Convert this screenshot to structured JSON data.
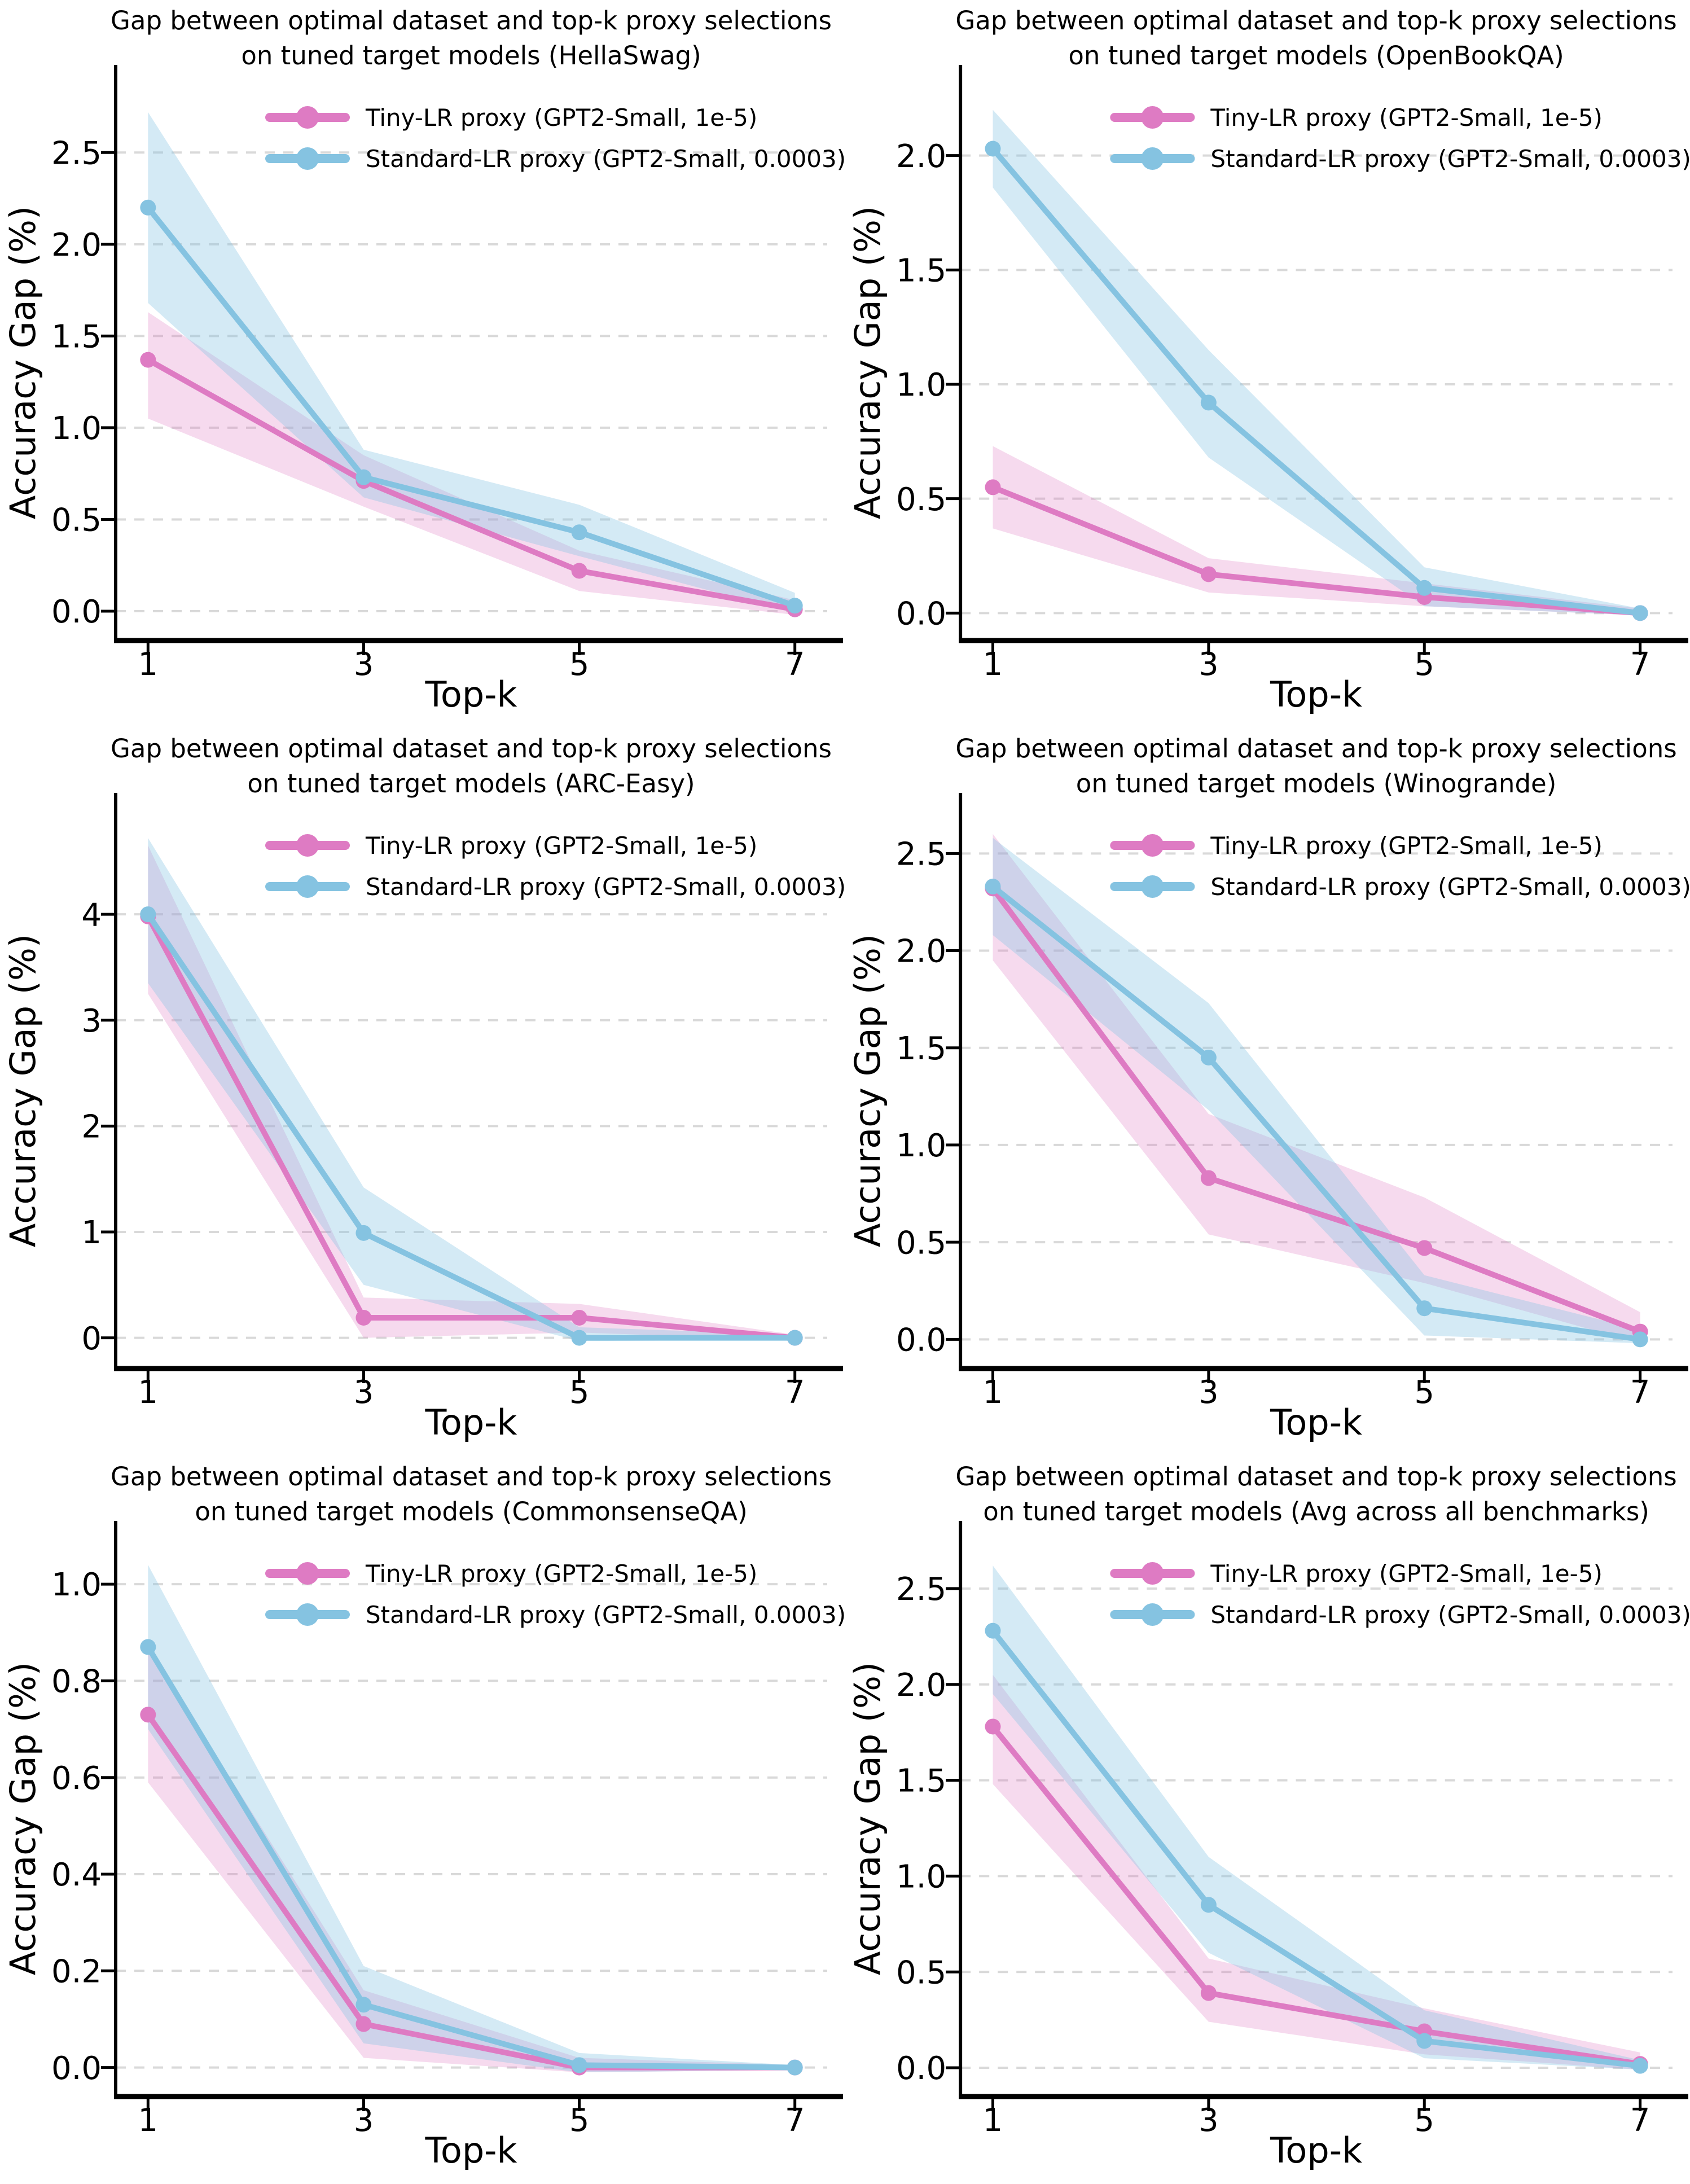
{
  "figure": {
    "rows": 3,
    "cols": 2,
    "background": "#ffffff",
    "description": "2x3 grid of line charts comparing proxy selection accuracy gaps"
  },
  "colors": {
    "tiny_line": "#de7bc3",
    "standard_line": "#85c3e1",
    "tiny_band_opacity": 0.28,
    "standard_band_opacity": 0.35,
    "grid": "#d9d9d9",
    "axis": "#000000",
    "text": "#000000"
  },
  "shared": {
    "xlabel": "Top-k",
    "ylabel": "Accuracy Gap (%)",
    "x_tick_labels": [
      "1",
      "3",
      "5",
      "7"
    ],
    "legend": [
      "Tiny-LR proxy (GPT2-Small, 1e-5)",
      "Standard-LR proxy (GPT2-Small, 0.0003)"
    ]
  },
  "chart_data": [
    {
      "type": "line",
      "title_line1": "Gap between optimal dataset and top-k proxy selections",
      "title_line2": "on tuned target models (HellaSwag)",
      "benchmark": "HellaSwag",
      "xlabel": "Top-k",
      "ylabel": "Accuracy Gap (%)",
      "x": [
        1,
        3,
        5,
        7
      ],
      "x_tick_labels": [
        "1",
        "3",
        "5",
        "7"
      ],
      "xlim": [
        0.7,
        7.3
      ],
      "ylim": [
        -0.16,
        2.87
      ],
      "y_ticks": [
        0.0,
        0.5,
        1.0,
        1.5,
        2.0,
        2.5
      ],
      "y_tick_labels": [
        "0.0",
        "0.5",
        "1.0",
        "1.5",
        "2.0",
        "2.5"
      ],
      "grid": "dashed horizontal",
      "legend_position": "upper center, no frame",
      "series": [
        {
          "name": "Tiny-LR proxy (GPT2-Small, 1e-5)",
          "color_key": "tiny",
          "values": [
            1.37,
            0.71,
            0.22,
            0.01
          ],
          "band_lower": [
            1.05,
            0.57,
            0.11,
            -0.02
          ],
          "band_upper": [
            1.63,
            0.85,
            0.33,
            0.06
          ]
        },
        {
          "name": "Standard-LR proxy (GPT2-Small, 0.0003)",
          "color_key": "standard",
          "values": [
            2.2,
            0.73,
            0.43,
            0.03
          ],
          "band_lower": [
            1.68,
            0.62,
            0.3,
            -0.01
          ],
          "band_upper": [
            2.72,
            0.88,
            0.58,
            0.1
          ]
        }
      ]
    },
    {
      "type": "line",
      "title_line1": "Gap between optimal dataset and top-k proxy selections",
      "title_line2": "on tuned target models (OpenBookQA)",
      "benchmark": "OpenBookQA",
      "xlabel": "Top-k",
      "ylabel": "Accuracy Gap (%)",
      "x": [
        1,
        3,
        5,
        7
      ],
      "x_tick_labels": [
        "1",
        "3",
        "5",
        "7"
      ],
      "xlim": [
        0.7,
        7.3
      ],
      "ylim": [
        -0.12,
        2.31
      ],
      "y_ticks": [
        0.0,
        0.5,
        1.0,
        1.5,
        2.0
      ],
      "y_tick_labels": [
        "0.0",
        "0.5",
        "1.0",
        "1.5",
        "2.0"
      ],
      "grid": "dashed horizontal",
      "legend_position": "upper center, no frame",
      "series": [
        {
          "name": "Tiny-LR proxy (GPT2-Small, 1e-5)",
          "color_key": "tiny",
          "values": [
            0.55,
            0.17,
            0.07,
            0.0
          ],
          "band_lower": [
            0.37,
            0.09,
            0.03,
            -0.01
          ],
          "band_upper": [
            0.73,
            0.24,
            0.13,
            0.02
          ]
        },
        {
          "name": "Standard-LR proxy (GPT2-Small, 0.0003)",
          "color_key": "standard",
          "values": [
            2.03,
            0.92,
            0.11,
            0.0
          ],
          "band_lower": [
            1.86,
            0.68,
            0.03,
            -0.01
          ],
          "band_upper": [
            2.2,
            1.15,
            0.2,
            0.02
          ]
        }
      ]
    },
    {
      "type": "line",
      "title_line1": "Gap between optimal dataset and top-k proxy selections",
      "title_line2": "on tuned target models (ARC-Easy)",
      "benchmark": "ARC-Easy",
      "xlabel": "Top-k",
      "ylabel": "Accuracy Gap (%)",
      "x": [
        1,
        3,
        5,
        7
      ],
      "x_tick_labels": [
        "1",
        "3",
        "5",
        "7"
      ],
      "xlim": [
        0.7,
        7.3
      ],
      "ylim": [
        -0.29,
        4.96
      ],
      "y_ticks": [
        0,
        1,
        2,
        3,
        4
      ],
      "y_tick_labels": [
        "0",
        "1",
        "2",
        "3",
        "4"
      ],
      "grid": "dashed horizontal",
      "legend_position": "upper center, no frame",
      "series": [
        {
          "name": "Tiny-LR proxy (GPT2-Small, 1e-5)",
          "color_key": "tiny",
          "values": [
            3.98,
            0.19,
            0.19,
            0.0
          ],
          "band_lower": [
            3.25,
            0.0,
            0.05,
            -0.02
          ],
          "band_upper": [
            4.65,
            0.38,
            0.32,
            0.03
          ]
        },
        {
          "name": "Standard-LR proxy (GPT2-Small, 0.0003)",
          "color_key": "standard",
          "values": [
            4.0,
            0.99,
            0.0,
            0.0
          ],
          "band_lower": [
            3.35,
            0.5,
            -0.03,
            -0.02
          ],
          "band_upper": [
            4.72,
            1.42,
            0.1,
            0.03
          ]
        }
      ]
    },
    {
      "type": "line",
      "title_line1": "Gap between optimal dataset and top-k proxy selections",
      "title_line2": "on tuned target models (Winogrande)",
      "benchmark": "Winogrande",
      "xlabel": "Top-k",
      "ylabel": "Accuracy Gap (%)",
      "x": [
        1,
        3,
        5,
        7
      ],
      "x_tick_labels": [
        "1",
        "3",
        "5",
        "7"
      ],
      "xlim": [
        0.7,
        7.3
      ],
      "ylim": [
        -0.15,
        2.71
      ],
      "y_ticks": [
        0.0,
        0.5,
        1.0,
        1.5,
        2.0,
        2.5
      ],
      "y_tick_labels": [
        "0.0",
        "0.5",
        "1.0",
        "1.5",
        "2.0",
        "2.5"
      ],
      "grid": "dashed horizontal",
      "legend_position": "upper center, no frame",
      "series": [
        {
          "name": "Tiny-LR proxy (GPT2-Small, 1e-5)",
          "color_key": "tiny",
          "values": [
            2.32,
            0.83,
            0.47,
            0.04
          ],
          "band_lower": [
            1.95,
            0.54,
            0.29,
            -0.02
          ],
          "band_upper": [
            2.6,
            1.16,
            0.73,
            0.14
          ]
        },
        {
          "name": "Standard-LR proxy (GPT2-Small, 0.0003)",
          "color_key": "standard",
          "values": [
            2.33,
            1.45,
            0.16,
            0.0
          ],
          "band_lower": [
            2.08,
            1.18,
            0.02,
            -0.02
          ],
          "band_upper": [
            2.58,
            1.73,
            0.33,
            0.05
          ]
        }
      ]
    },
    {
      "type": "line",
      "title_line1": "Gap between optimal dataset and top-k proxy selections",
      "title_line2": "on tuned target models (CommonsenseQA)",
      "benchmark": "CommonsenseQA",
      "xlabel": "Top-k",
      "ylabel": "Accuracy Gap (%)",
      "x": [
        1,
        3,
        5,
        7
      ],
      "x_tick_labels": [
        "1",
        "3",
        "5",
        "7"
      ],
      "xlim": [
        0.7,
        7.3
      ],
      "ylim": [
        -0.06,
        1.09
      ],
      "y_ticks": [
        0.0,
        0.2,
        0.4,
        0.6,
        0.8,
        1.0
      ],
      "y_tick_labels": [
        "0.0",
        "0.2",
        "0.4",
        "0.6",
        "0.8",
        "1.0"
      ],
      "grid": "dashed horizontal",
      "legend_position": "upper center, no frame",
      "series": [
        {
          "name": "Tiny-LR proxy (GPT2-Small, 1e-5)",
          "color_key": "tiny",
          "values": [
            0.73,
            0.09,
            0.0,
            0.0
          ],
          "band_lower": [
            0.59,
            0.02,
            -0.01,
            -0.005
          ],
          "band_upper": [
            0.87,
            0.16,
            0.02,
            0.005
          ]
        },
        {
          "name": "Standard-LR proxy (GPT2-Small, 0.0003)",
          "color_key": "standard",
          "values": [
            0.87,
            0.13,
            0.005,
            0.0
          ],
          "band_lower": [
            0.7,
            0.05,
            -0.01,
            -0.005
          ],
          "band_upper": [
            1.04,
            0.21,
            0.03,
            0.005
          ]
        }
      ]
    },
    {
      "type": "line",
      "title_line1": "Gap between optimal dataset and top-k proxy selections",
      "title_line2": "on tuned target models (Avg across all benchmarks)",
      "benchmark": "Avg across all benchmarks",
      "xlabel": "Top-k",
      "ylabel": "Accuracy Gap (%)",
      "x": [
        1,
        3,
        5,
        7
      ],
      "x_tick_labels": [
        "1",
        "3",
        "5",
        "7"
      ],
      "xlim": [
        0.7,
        7.3
      ],
      "ylim": [
        -0.15,
        2.75
      ],
      "y_ticks": [
        0.0,
        0.5,
        1.0,
        1.5,
        2.0,
        2.5
      ],
      "y_tick_labels": [
        "0.0",
        "0.5",
        "1.0",
        "1.5",
        "2.0",
        "2.5"
      ],
      "grid": "dashed horizontal",
      "legend_position": "upper center, no frame",
      "series": [
        {
          "name": "Tiny-LR proxy (GPT2-Small, 1e-5)",
          "color_key": "tiny",
          "values": [
            1.78,
            0.39,
            0.19,
            0.02
          ],
          "band_lower": [
            1.48,
            0.24,
            0.07,
            -0.01
          ],
          "band_upper": [
            2.05,
            0.57,
            0.31,
            0.08
          ]
        },
        {
          "name": "Standard-LR proxy (GPT2-Small, 0.0003)",
          "color_key": "standard",
          "values": [
            2.28,
            0.85,
            0.14,
            0.01
          ],
          "band_lower": [
            1.95,
            0.6,
            0.05,
            -0.01
          ],
          "band_upper": [
            2.62,
            1.1,
            0.3,
            0.04
          ]
        }
      ]
    }
  ]
}
